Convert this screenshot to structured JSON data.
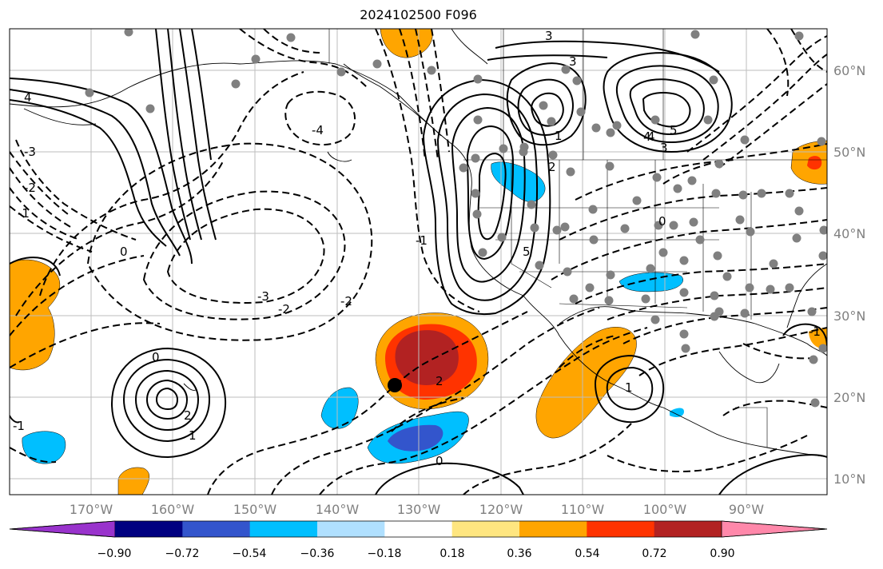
{
  "title": "2024102500 F096",
  "map": {
    "lon_labels": [
      "170°W",
      "160°W",
      "150°W",
      "140°W",
      "130°W",
      "120°W",
      "110°W",
      "100°W",
      "90°W"
    ],
    "lat_labels": [
      "60°N",
      "50°N",
      "40°N",
      "30°N",
      "20°N",
      "10°N"
    ],
    "contour_labels": [
      "4",
      "3",
      "-4",
      "-3",
      "-2",
      "-1",
      "0",
      "1",
      "2",
      "3",
      "4",
      "5",
      "0",
      "1",
      "2",
      "3",
      "4",
      "5",
      "-1",
      "-2",
      "-3",
      "-1",
      "0",
      "1",
      "2",
      "0",
      "-2",
      "-1"
    ]
  },
  "colorbar": {
    "ticks": [
      "−0.90",
      "−0.72",
      "−0.54",
      "−0.36",
      "−0.18",
      "0.18",
      "0.36",
      "0.54",
      "0.72",
      "0.90"
    ],
    "colors": [
      "#9933cc",
      "#000080",
      "#3355cc",
      "#00bfff",
      "#b0e0ff",
      "#ffffff",
      "#ffe680",
      "#ffa500",
      "#ff3300",
      "#b22222",
      "#ff88aa"
    ]
  }
}
